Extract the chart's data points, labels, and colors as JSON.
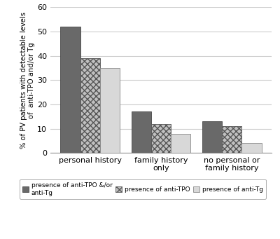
{
  "categories": [
    "personal history",
    "family history\nonly",
    "no personal or\nfamily history"
  ],
  "series": [
    {
      "label": "presence of anti-TPO &/or\nanti-Tg",
      "values": [
        52,
        17,
        13
      ],
      "color": "#696969",
      "hatch": ""
    },
    {
      "label": "presence of anti-TPO",
      "values": [
        39,
        12,
        11
      ],
      "color": "#c0c0c0",
      "hatch": "xxxx"
    },
    {
      "label": "presence of anti-Tg",
      "values": [
        35,
        8,
        4
      ],
      "color": "#d8d8d8",
      "hatch": ""
    }
  ],
  "ylabel": "% of PV patients with detectable levels\nof  anti-TPO and/or Tg",
  "ylim": [
    0,
    60
  ],
  "yticks": [
    0,
    10,
    20,
    30,
    40,
    50,
    60
  ],
  "bar_width": 0.28,
  "background_color": "#ffffff",
  "grid_color": "#cccccc"
}
